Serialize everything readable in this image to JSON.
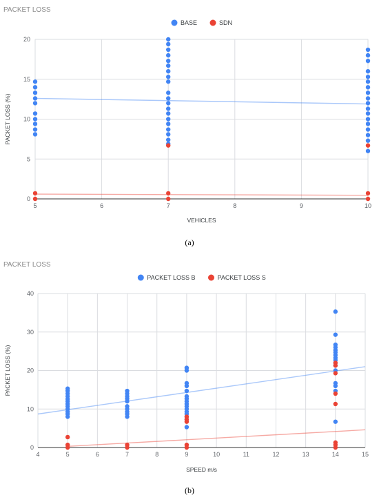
{
  "chart_data": [
    {
      "type": "scatter",
      "title": "PACKET LOSS",
      "xlabel": "VEHICLES",
      "ylabel": "PACKET LOSS (%)",
      "caption": "(a)",
      "xlim": [
        5,
        10
      ],
      "ylim": [
        0,
        20
      ],
      "xticks": [
        "5",
        "6",
        "7",
        "8",
        "9",
        "10"
      ],
      "yticks": [
        "0",
        "5",
        "10",
        "15",
        "20"
      ],
      "grid": true,
      "legend_position": "top-center",
      "series": [
        {
          "name": "BASE",
          "color": "#4285f4",
          "points": [
            [
              5,
              14.7
            ],
            [
              5,
              14.0
            ],
            [
              5,
              13.3
            ],
            [
              5,
              12.6
            ],
            [
              5,
              12.0
            ],
            [
              5,
              10.7
            ],
            [
              5,
              10.0
            ],
            [
              5,
              9.4
            ],
            [
              5,
              8.7
            ],
            [
              5,
              8.1
            ],
            [
              7,
              20.0
            ],
            [
              7,
              19.4
            ],
            [
              7,
              18.7
            ],
            [
              7,
              18.0
            ],
            [
              7,
              17.3
            ],
            [
              7,
              16.7
            ],
            [
              7,
              16.0
            ],
            [
              7,
              15.3
            ],
            [
              7,
              14.7
            ],
            [
              7,
              13.3
            ],
            [
              7,
              12.6
            ],
            [
              7,
              12.0
            ],
            [
              7,
              11.3
            ],
            [
              7,
              10.7
            ],
            [
              7,
              10.0
            ],
            [
              7,
              9.4
            ],
            [
              7,
              8.7
            ],
            [
              7,
              8.1
            ],
            [
              7,
              7.4
            ],
            [
              7,
              6.9
            ],
            [
              10,
              18.7
            ],
            [
              10,
              18.0
            ],
            [
              10,
              17.3
            ],
            [
              10,
              16.0
            ],
            [
              10,
              15.3
            ],
            [
              10,
              14.7
            ],
            [
              10,
              14.0
            ],
            [
              10,
              13.3
            ],
            [
              10,
              12.6
            ],
            [
              10,
              12.0
            ],
            [
              10,
              11.3
            ],
            [
              10,
              10.7
            ],
            [
              10,
              10.0
            ],
            [
              10,
              9.4
            ],
            [
              10,
              8.7
            ],
            [
              10,
              8.0
            ],
            [
              10,
              7.3
            ],
            [
              10,
              6.0
            ]
          ],
          "trendline": [
            [
              5,
              12.6
            ],
            [
              10,
              11.9
            ]
          ]
        },
        {
          "name": "SDN",
          "color": "#ea4335",
          "points": [
            [
              5,
              0.7
            ],
            [
              5,
              0.0
            ],
            [
              7,
              6.7
            ],
            [
              7,
              0.7
            ],
            [
              7,
              0.0
            ],
            [
              10,
              6.7
            ],
            [
              10,
              0.7
            ],
            [
              10,
              0.0
            ]
          ],
          "trendline": [
            [
              5,
              0.6
            ],
            [
              10,
              0.45
            ]
          ]
        }
      ]
    },
    {
      "type": "scatter",
      "title": "PACKET LOSS",
      "xlabel": "SPEED m/s",
      "ylabel": "PACKET LOSS (%)",
      "caption": "(b)",
      "xlim": [
        4,
        15
      ],
      "ylim": [
        0,
        40
      ],
      "xticks": [
        "4",
        "5",
        "6",
        "7",
        "8",
        "9",
        "10",
        "11",
        "12",
        "13",
        "14",
        "15"
      ],
      "yticks": [
        "0",
        "10",
        "20",
        "30",
        "40"
      ],
      "grid": true,
      "legend_position": "top-center",
      "series": [
        {
          "name": "PACKET LOSS B",
          "color": "#4285f4",
          "points": [
            [
              5,
              15.3
            ],
            [
              5,
              14.7
            ],
            [
              5,
              14.0
            ],
            [
              5,
              13.3
            ],
            [
              5,
              12.6
            ],
            [
              5,
              12.0
            ],
            [
              5,
              11.3
            ],
            [
              5,
              10.7
            ],
            [
              5,
              10.0
            ],
            [
              5,
              9.3
            ],
            [
              5,
              8.7
            ],
            [
              5,
              8.0
            ],
            [
              7,
              14.7
            ],
            [
              7,
              14.0
            ],
            [
              7,
              13.3
            ],
            [
              7,
              12.7
            ],
            [
              7,
              12.0
            ],
            [
              7,
              10.7
            ],
            [
              7,
              10.0
            ],
            [
              7,
              9.3
            ],
            [
              7,
              8.7
            ],
            [
              7,
              8.0
            ],
            [
              9,
              20.7
            ],
            [
              9,
              20.0
            ],
            [
              9,
              16.7
            ],
            [
              9,
              16.0
            ],
            [
              9,
              14.7
            ],
            [
              9,
              13.3
            ],
            [
              9,
              12.7
            ],
            [
              9,
              12.0
            ],
            [
              9,
              11.3
            ],
            [
              9,
              10.7
            ],
            [
              9,
              10.0
            ],
            [
              9,
              9.3
            ],
            [
              9,
              8.7
            ],
            [
              9,
              8.0
            ],
            [
              9,
              7.3
            ],
            [
              9,
              5.3
            ],
            [
              14,
              35.3
            ],
            [
              14,
              29.3
            ],
            [
              14,
              26.7
            ],
            [
              14,
              26.0
            ],
            [
              14,
              25.3
            ],
            [
              14,
              24.7
            ],
            [
              14,
              24.0
            ],
            [
              14,
              23.3
            ],
            [
              14,
              22.7
            ],
            [
              14,
              22.0
            ],
            [
              14,
              21.3
            ],
            [
              14,
              20.0
            ],
            [
              14,
              16.7
            ],
            [
              14,
              16.0
            ],
            [
              14,
              14.7
            ],
            [
              14,
              6.7
            ]
          ],
          "trendline": [
            [
              4,
              8.7
            ],
            [
              15,
              21.0
            ]
          ]
        },
        {
          "name": "PACKET LOSS S",
          "color": "#ea4335",
          "points": [
            [
              5,
              2.7
            ],
            [
              5,
              0.7
            ],
            [
              5,
              0.0
            ],
            [
              7,
              0.7
            ],
            [
              7,
              0.0
            ],
            [
              9,
              8.0
            ],
            [
              9,
              7.3
            ],
            [
              9,
              6.7
            ],
            [
              9,
              0.7
            ],
            [
              9,
              0.0
            ],
            [
              14,
              22.0
            ],
            [
              14,
              21.3
            ],
            [
              14,
              19.3
            ],
            [
              14,
              14.0
            ],
            [
              14,
              11.3
            ],
            [
              14,
              1.3
            ],
            [
              14,
              0.7
            ],
            [
              14,
              0.0
            ]
          ],
          "trendline": [
            [
              5,
              0.3
            ],
            [
              15,
              4.6
            ]
          ]
        }
      ]
    }
  ]
}
